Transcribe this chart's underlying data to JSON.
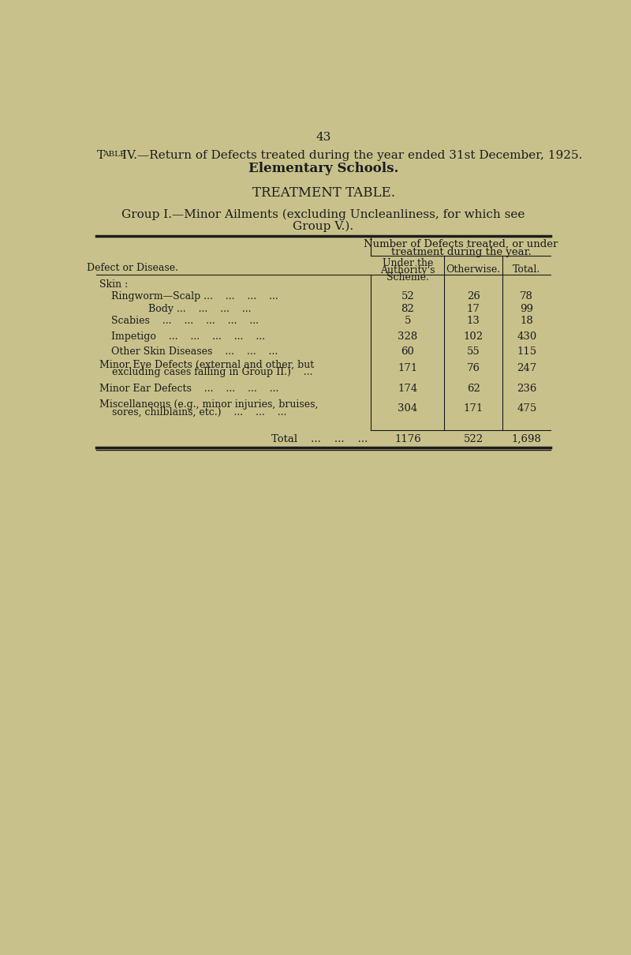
{
  "page_number": "43",
  "title_line1_prefix": "T",
  "title_line1_prefix_small": "ABLE",
  "title_line1_main": " IV.—Return of Defects treated during the year ended 31st December, 1925.",
  "title_line2": "Elementary Schools.",
  "section_title": "TREATMENT TABLE.",
  "group_title_line1": "Group I.—Minor Ailments (excluding Uncleanliness, for which see",
  "group_title_line2": "Group V.).",
  "col_header_span": "Number of Defects treated, or under\ntreatment during the year.",
  "col1_header": "Under the\nAuthority's\nScheme.",
  "col2_header": "Otherwise.",
  "col3_header": "Total.",
  "col_left_header": "Defect or Disease.",
  "rows": [
    {
      "label": "Skin :",
      "indent": 0,
      "col1": "",
      "col2": "",
      "col3": "",
      "multiline": false
    },
    {
      "label": "Ringworm—Scalp ...    ...    ...    ...",
      "indent": 1,
      "col1": "52",
      "col2": "26",
      "col3": "78",
      "multiline": false
    },
    {
      "label": "Body ...    ...    ...    ...",
      "indent": 2,
      "col1": "82",
      "col2": "17",
      "col3": "99",
      "multiline": false
    },
    {
      "label": "Scabies    ...    ...    ...    ...    ...",
      "indent": 1,
      "col1": "5",
      "col2": "13",
      "col3": "18",
      "multiline": false
    },
    {
      "label": "Impetigo    ...    ...    ...    ...    ...",
      "indent": 1,
      "col1": "328",
      "col2": "102",
      "col3": "430",
      "multiline": false
    },
    {
      "label": "Other Skin Diseases    ...    ...    ...",
      "indent": 1,
      "col1": "60",
      "col2": "55",
      "col3": "115",
      "multiline": false
    },
    {
      "label": "Minor Eye Defects (external and other, but",
      "label2": "    excluding cases falling in Group II.)    ...",
      "indent": 0,
      "col1": "171",
      "col2": "76",
      "col3": "247",
      "multiline": true
    },
    {
      "label": "Minor Ear Defects    ...    ...    ...    ...",
      "indent": 0,
      "col1": "174",
      "col2": "62",
      "col3": "236",
      "multiline": false
    },
    {
      "label": "Miscellaneous (e.g., minor injuries, bruises,",
      "label2": "    sores, chilblains, etc.)    ...    ...    ...",
      "indent": 0,
      "col1": "304",
      "col2": "171",
      "col3": "475",
      "multiline": true
    }
  ],
  "total_row": {
    "label": "Total    ...    ...    ...",
    "col1": "1176",
    "col2": "522",
    "col3": "1,698"
  },
  "bg_color": "#c8c18b",
  "text_color": "#1c1c1c",
  "line_color": "#1c1c1c"
}
